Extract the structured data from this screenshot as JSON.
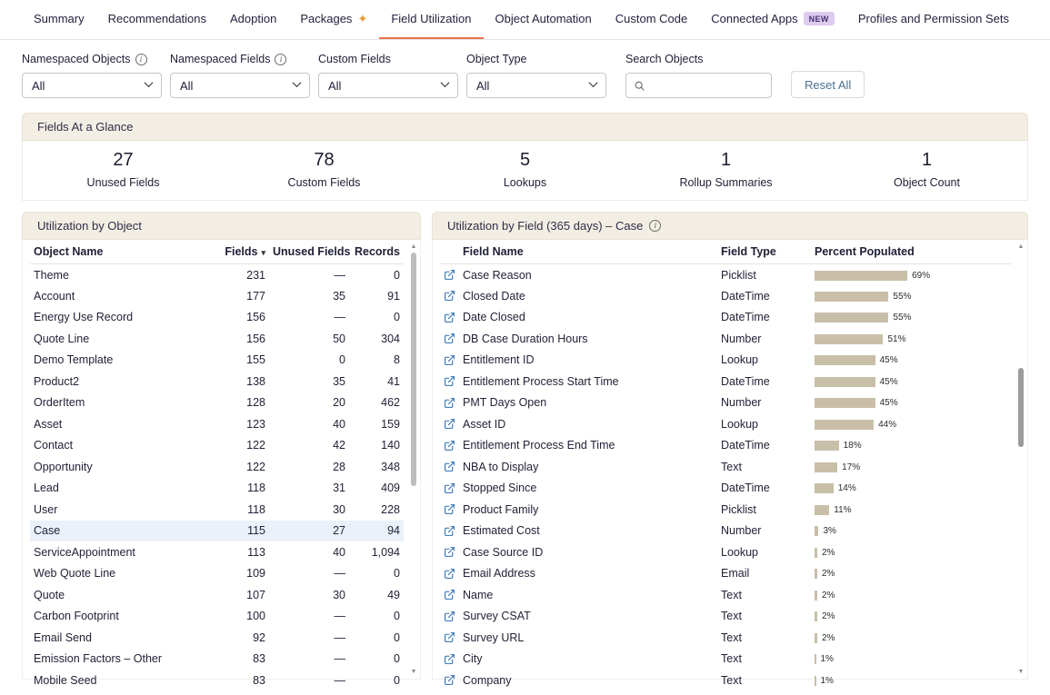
{
  "colors": {
    "accent": "#E9734D",
    "bar": "#C9BFA9",
    "badge-bg": "#DECBF0",
    "badge-text": "#45336F",
    "selected-row": "#EAF1F9",
    "header-beige": "#F3EEE3",
    "link-blue": "#2E6FB0",
    "reset-blue": "#4C7290"
  },
  "tabs": [
    {
      "label": "Summary"
    },
    {
      "label": "Recommendations"
    },
    {
      "label": "Adoption"
    },
    {
      "label": "Packages",
      "icon": "sparkle"
    },
    {
      "label": "Field Utilization",
      "active": true
    },
    {
      "label": "Object Automation"
    },
    {
      "label": "Custom Code"
    },
    {
      "label": "Connected Apps",
      "badge": "NEW"
    },
    {
      "label": "Profiles and Permission Sets"
    }
  ],
  "filters": {
    "items": [
      {
        "label": "Namespaced Objects",
        "value": "All",
        "info": true
      },
      {
        "label": "Namespaced Fields",
        "value": "All",
        "info": true
      },
      {
        "label": "Custom Fields",
        "value": "All",
        "info": false
      },
      {
        "label": "Object Type",
        "value": "All",
        "info": false
      }
    ],
    "search_label": "Search Objects",
    "search_value": "",
    "reset_label": "Reset All"
  },
  "glance": {
    "title": "Fields At a Glance",
    "stats": [
      {
        "value": "27",
        "label": "Unused Fields"
      },
      {
        "value": "78",
        "label": "Custom Fields"
      },
      {
        "value": "5",
        "label": "Lookups"
      },
      {
        "value": "1",
        "label": "Rollup Summaries"
      },
      {
        "value": "1",
        "label": "Object Count"
      }
    ]
  },
  "objects_panel": {
    "title": "Utilization by Object",
    "columns": [
      "Object Name",
      "Fields",
      "Unused Fields",
      "Records"
    ],
    "sorted_column": "Fields",
    "selected_object": "Case",
    "rows": [
      {
        "name": "Theme",
        "fields": "231",
        "unused": "—",
        "records": "0"
      },
      {
        "name": "Account",
        "fields": "177",
        "unused": "35",
        "records": "91"
      },
      {
        "name": "Energy Use Record",
        "fields": "156",
        "unused": "—",
        "records": "0"
      },
      {
        "name": "Quote Line",
        "fields": "156",
        "unused": "50",
        "records": "304"
      },
      {
        "name": "Demo Template",
        "fields": "155",
        "unused": "0",
        "records": "8"
      },
      {
        "name": "Product2",
        "fields": "138",
        "unused": "35",
        "records": "41"
      },
      {
        "name": "OrderItem",
        "fields": "128",
        "unused": "20",
        "records": "462"
      },
      {
        "name": "Asset",
        "fields": "123",
        "unused": "40",
        "records": "159"
      },
      {
        "name": "Contact",
        "fields": "122",
        "unused": "42",
        "records": "140"
      },
      {
        "name": "Opportunity",
        "fields": "122",
        "unused": "28",
        "records": "348"
      },
      {
        "name": "Lead",
        "fields": "118",
        "unused": "31",
        "records": "409"
      },
      {
        "name": "User",
        "fields": "118",
        "unused": "30",
        "records": "228"
      },
      {
        "name": "Case",
        "fields": "115",
        "unused": "27",
        "records": "94"
      },
      {
        "name": "ServiceAppointment",
        "fields": "113",
        "unused": "40",
        "records": "1,094"
      },
      {
        "name": "Web Quote Line",
        "fields": "109",
        "unused": "—",
        "records": "0"
      },
      {
        "name": "Quote",
        "fields": "107",
        "unused": "30",
        "records": "49"
      },
      {
        "name": "Carbon Footprint",
        "fields": "100",
        "unused": "—",
        "records": "0"
      },
      {
        "name": "Email Send",
        "fields": "92",
        "unused": "—",
        "records": "0"
      },
      {
        "name": "Emission Factors – Other",
        "fields": "83",
        "unused": "—",
        "records": "0"
      },
      {
        "name": "Mobile Seed",
        "fields": "83",
        "unused": "—",
        "records": "0"
      }
    ]
  },
  "fields_panel": {
    "title": "Utilization by Field (365 days) – Case",
    "columns": [
      "Field Name",
      "Field Type",
      "Percent Populated"
    ],
    "rows": [
      {
        "name": "Case Reason",
        "type": "Picklist",
        "percent": 69
      },
      {
        "name": "Closed Date",
        "type": "DateTime",
        "percent": 55
      },
      {
        "name": "Date Closed",
        "type": "DateTime",
        "percent": 55
      },
      {
        "name": "DB Case Duration Hours",
        "type": "Number",
        "percent": 51
      },
      {
        "name": "Entitlement ID",
        "type": "Lookup",
        "percent": 45
      },
      {
        "name": "Entitlement Process Start Time",
        "type": "DateTime",
        "percent": 45
      },
      {
        "name": "PMT Days Open",
        "type": "Number",
        "percent": 45
      },
      {
        "name": "Asset ID",
        "type": "Lookup",
        "percent": 44
      },
      {
        "name": "Entitlement Process End Time",
        "type": "DateTime",
        "percent": 18
      },
      {
        "name": "NBA to Display",
        "type": "Text",
        "percent": 17
      },
      {
        "name": "Stopped Since",
        "type": "DateTime",
        "percent": 14
      },
      {
        "name": "Product Family",
        "type": "Picklist",
        "percent": 11
      },
      {
        "name": "Estimated Cost",
        "type": "Number",
        "percent": 3
      },
      {
        "name": "Case Source ID",
        "type": "Lookup",
        "percent": 2
      },
      {
        "name": "Email Address",
        "type": "Email",
        "percent": 2
      },
      {
        "name": "Name",
        "type": "Text",
        "percent": 2
      },
      {
        "name": "Survey CSAT",
        "type": "Text",
        "percent": 2
      },
      {
        "name": "Survey URL",
        "type": "Text",
        "percent": 2
      },
      {
        "name": "City",
        "type": "Text",
        "percent": 1
      },
      {
        "name": "Company",
        "type": "Text",
        "percent": 1
      }
    ]
  }
}
